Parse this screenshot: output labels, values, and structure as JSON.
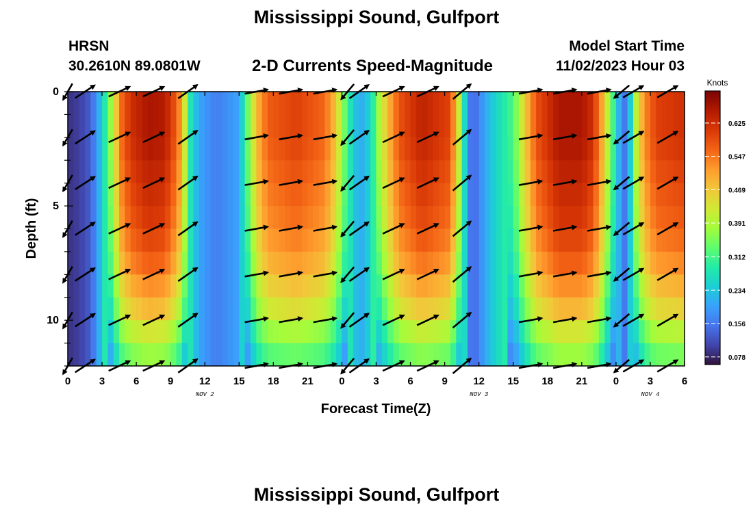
{
  "header": {
    "title": "Mississippi Sound, Gulfport",
    "station_id": "HRSN",
    "station_location": "30.2610N  89.0801W",
    "product": "2-D Currents Speed-Magnitude",
    "model_start_label": "Model Start Time",
    "model_start_value": "11/02/2023 Hour 03"
  },
  "footer": {
    "title": "Mississippi Sound, Gulfport"
  },
  "colors": {
    "colormap": [
      "#30123b",
      "#4145ab",
      "#4675ed",
      "#39a2fc",
      "#1bcfd4",
      "#24eca6",
      "#61fc6c",
      "#a4fc3b",
      "#d1e834",
      "#f3c63a",
      "#fe9b2d",
      "#f36315",
      "#d93806",
      "#b11901",
      "#7a0402"
    ]
  },
  "chart_data": {
    "type": "heatmap",
    "xlabel": "Forecast Time(Z)",
    "ylabel": "Depth (ft)",
    "x_tick_labels": [
      "0",
      "3",
      "6",
      "9",
      "12",
      "15",
      "18",
      "21",
      "0",
      "3",
      "6",
      "9",
      "12",
      "15",
      "18",
      "21",
      "0",
      "3",
      "6"
    ],
    "date_labels": [
      {
        "label": "NOV 2",
        "hour": 12
      },
      {
        "label": "NOV 3",
        "hour": 36
      },
      {
        "label": "NOV 4",
        "hour": 51
      }
    ],
    "xlim": [
      0,
      54
    ],
    "y_ticks": [
      0,
      5,
      10
    ],
    "ylim": [
      0,
      12
    ],
    "colorbar": {
      "label": "Knots",
      "ticks": [
        "0.078",
        "0.156",
        "0.234",
        "0.312",
        "0.391",
        "0.469",
        "0.547",
        "0.625"
      ],
      "range": [
        0.06,
        0.7
      ]
    },
    "speed_profile": {
      "hours": [
        0,
        1,
        2,
        3,
        3.7,
        4.2,
        4.6,
        5.5,
        7,
        8.5,
        9.5,
        10,
        10.4,
        10.8,
        11.5,
        13,
        15,
        16.5,
        17.5,
        20,
        22.5,
        23.5,
        24.5,
        25.5,
        26.5,
        27.3,
        28.2,
        29,
        31,
        33.3,
        34,
        34.6,
        35.1,
        35.6,
        36.2,
        37,
        39,
        40,
        41,
        43,
        45,
        46,
        46.8,
        47.5,
        48.2,
        48.8,
        49.3,
        49.8,
        50.5,
        51.5,
        54
      ],
      "speeds_surface": [
        0.09,
        0.1,
        0.13,
        0.24,
        0.36,
        0.46,
        0.55,
        0.62,
        0.66,
        0.65,
        0.57,
        0.5,
        0.38,
        0.26,
        0.2,
        0.16,
        0.2,
        0.48,
        0.57,
        0.6,
        0.56,
        0.47,
        0.3,
        0.2,
        0.25,
        0.39,
        0.5,
        0.58,
        0.64,
        0.6,
        0.5,
        0.3,
        0.16,
        0.14,
        0.18,
        0.23,
        0.32,
        0.46,
        0.58,
        0.66,
        0.66,
        0.62,
        0.5,
        0.36,
        0.22,
        0.15,
        0.25,
        0.42,
        0.53,
        0.6,
        0.62
      ],
      "depth_factor": [
        1.0,
        1.0,
        0.99,
        0.97,
        0.95,
        0.93,
        0.9,
        0.86,
        0.8,
        0.74,
        0.65,
        0.57
      ]
    },
    "vectors": {
      "times": [
        0,
        1.5,
        4.5,
        7.5,
        10.5,
        16.5,
        19.5,
        22.5,
        24.5,
        25.5,
        28.5,
        31.5,
        34.5,
        40.5,
        43.5,
        46.5,
        48.5,
        49.5,
        52.5
      ],
      "depths": [
        0,
        2,
        4,
        6,
        8,
        10,
        12
      ],
      "directions_deg": [
        -120,
        33,
        25,
        25,
        35,
        10,
        10,
        10,
        -130,
        35,
        25,
        25,
        40,
        10,
        10,
        10,
        -140,
        30,
        30
      ],
      "relative_length": [
        0.8,
        1.0,
        1.0,
        1.0,
        1.0,
        1.0,
        1.0,
        1.0,
        0.85,
        1.0,
        1.0,
        1.0,
        1.0,
        1.0,
        1.0,
        1.0,
        0.85,
        1.0,
        1.0
      ]
    }
  }
}
